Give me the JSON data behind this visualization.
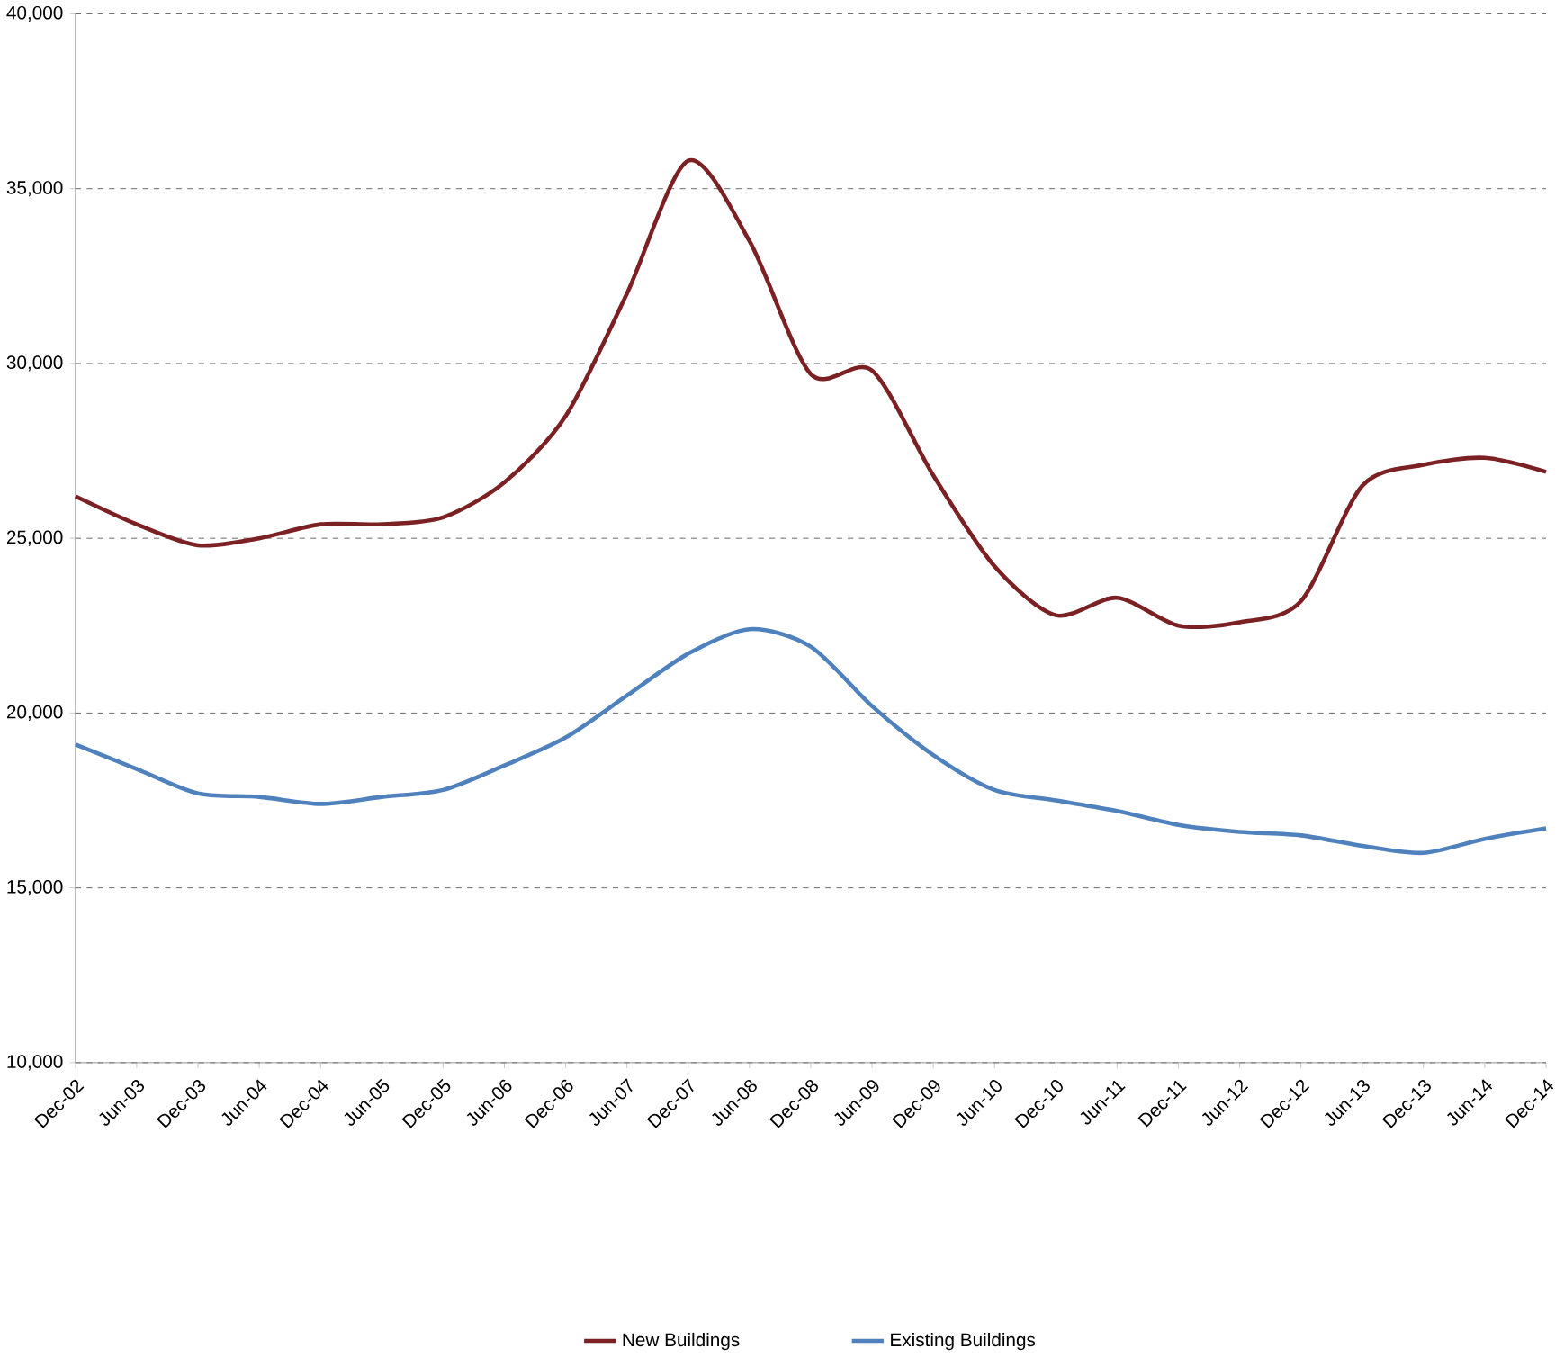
{
  "chart_data": {
    "type": "line",
    "categories": [
      "Dec-02",
      "Jun-03",
      "Dec-03",
      "Jun-04",
      "Dec-04",
      "Jun-05",
      "Dec-05",
      "Jun-06",
      "Dec-06",
      "Jun-07",
      "Dec-07",
      "Jun-08",
      "Dec-08",
      "Jun-09",
      "Dec-09",
      "Jun-10",
      "Dec-10",
      "Jun-11",
      "Dec-11",
      "Jun-12",
      "Dec-12",
      "Jun-13",
      "Dec-13",
      "Jun-14",
      "Dec-14"
    ],
    "series": [
      {
        "name": "New Buildings",
        "color": "#7b2023",
        "values": [
          26200,
          25400,
          24800,
          25000,
          25400,
          25400,
          25600,
          26600,
          28500,
          32000,
          35800,
          33500,
          29700,
          29800,
          26800,
          24200,
          22800,
          23300,
          22500,
          22600,
          23200,
          26500,
          27100,
          27300,
          26900
        ]
      },
      {
        "name": "Existing Buildings",
        "color": "#4f81bd",
        "values": [
          19100,
          18400,
          17700,
          17600,
          17400,
          17600,
          17800,
          18500,
          19300,
          20500,
          21700,
          22400,
          21900,
          20200,
          18800,
          17800,
          17500,
          17200,
          16800,
          16600,
          16500,
          16200,
          16000,
          16400,
          16700
        ]
      }
    ],
    "ylim": [
      10000,
      40000
    ],
    "yticks": [
      {
        "value": 10000,
        "label": "10,000"
      },
      {
        "value": 15000,
        "label": "15,000"
      },
      {
        "value": 20000,
        "label": "20,000"
      },
      {
        "value": 25000,
        "label": "25,000"
      },
      {
        "value": 30000,
        "label": "30,000"
      },
      {
        "value": 35000,
        "label": "35,000"
      },
      {
        "value": 40000,
        "label": "40,000"
      }
    ],
    "grid": "y",
    "legend": "bottom",
    "marker": "none",
    "line_style": "solid"
  }
}
